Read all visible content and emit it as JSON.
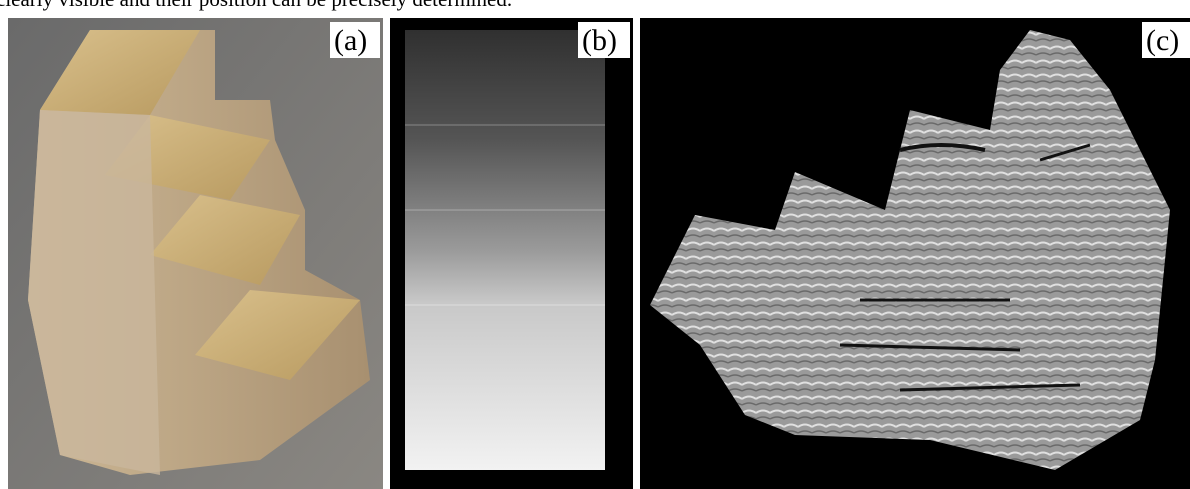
{
  "caption": "clearly visible and their position can be precisely determined.",
  "panels": [
    {
      "label": "(a)"
    },
    {
      "label": "(b)"
    },
    {
      "label": "(c)"
    }
  ]
}
